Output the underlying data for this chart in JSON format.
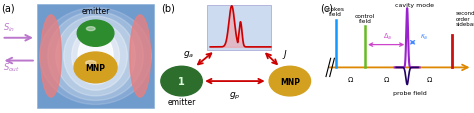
{
  "panel_a": {
    "label": "(a)",
    "emitter_color": "#2d8c2d",
    "mnp_color": "#d4a020",
    "bg_blue_left": "#4a7abf",
    "bg_blue_right": "#4a7abf",
    "bg_center": "#ffffff",
    "cavity_pink": "#e88080",
    "sin_color": "#bb77cc",
    "sout_color": "#bb77cc"
  },
  "panel_b": {
    "label": "(b)",
    "emitter_color": "#2d6e2d",
    "mnp_color": "#d4a020",
    "arrow_color": "#cc0000",
    "box_color": "#c8d8f0",
    "pulse_color": "#cc0000"
  },
  "panel_c": {
    "label": "(c)",
    "stokes_color": "#1199ff",
    "control_color": "#66bb22",
    "cavity_color": "#9922cc",
    "probe_color": "#220066",
    "sideband_color": "#cc1111",
    "axis_color": "#dd8800",
    "delta_color": "#cc44cc",
    "kappa_color": "#4488ff"
  }
}
